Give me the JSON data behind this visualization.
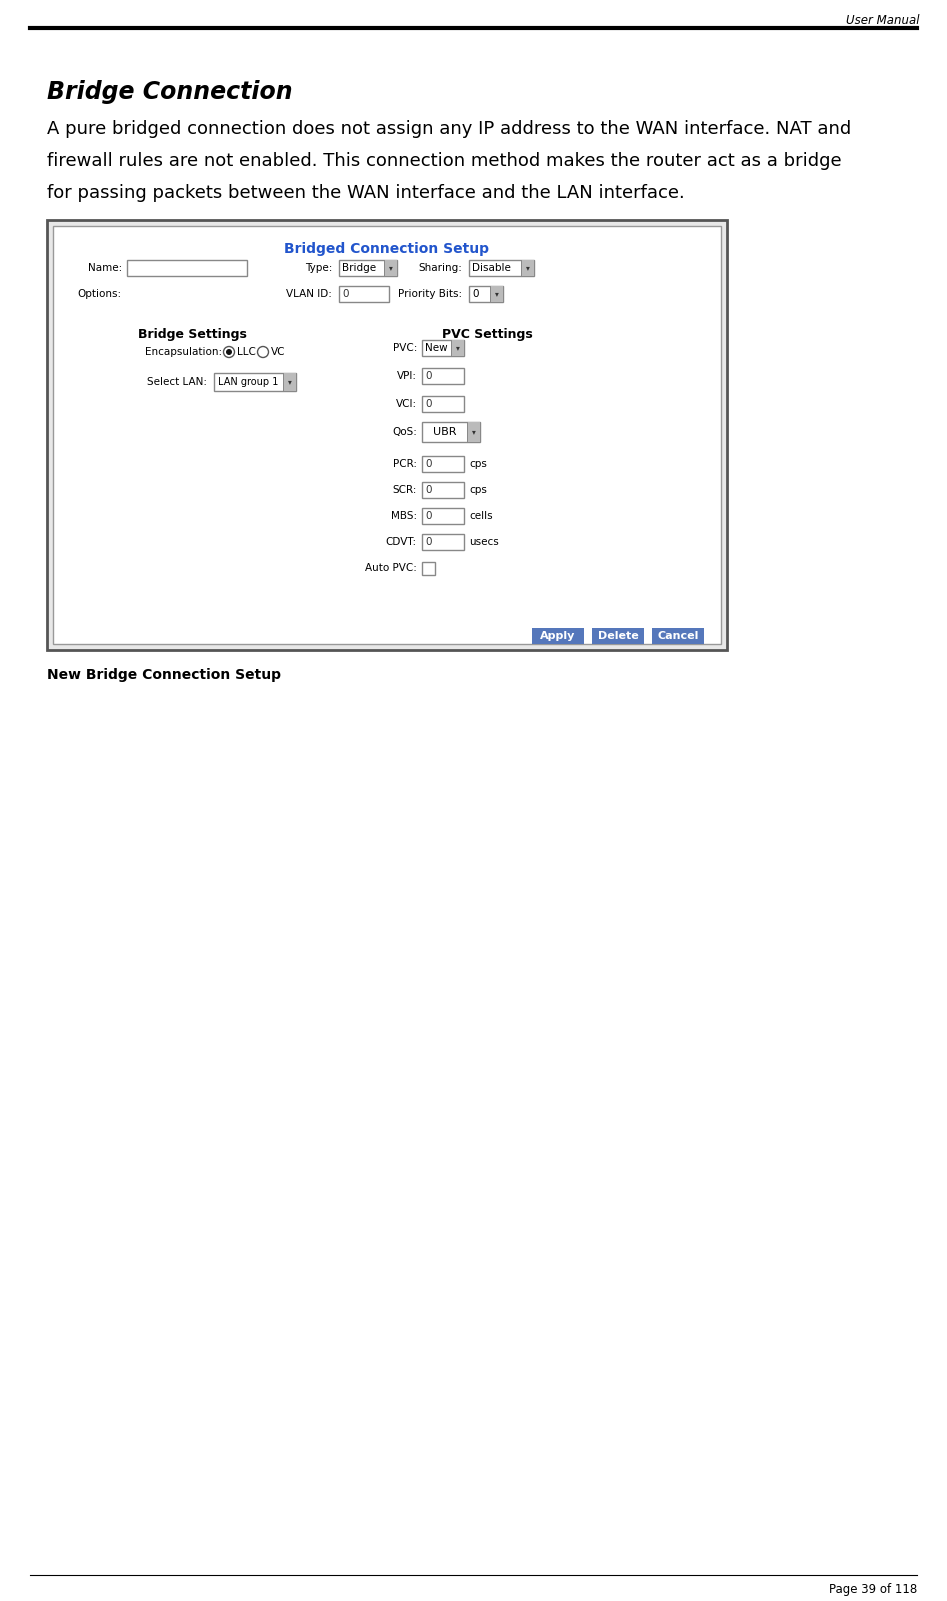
{
  "header_text": "User Manual",
  "title": "Bridge Connection",
  "body_line1": "A pure bridged connection does not assign any IP address to the WAN interface. NAT and",
  "body_line2": "firewall rules are not enabled. This connection method makes the router act as a bridge",
  "body_line3": "for passing packets between the WAN interface and the LAN interface.",
  "caption": "New Bridge Connection Setup",
  "page_text": "Page 39 of 118",
  "dialog_title": "Bridged Connection Setup",
  "dialog_title_color": "#2255cc",
  "bg_color": "#ffffff",
  "button_color": "#4466bb"
}
